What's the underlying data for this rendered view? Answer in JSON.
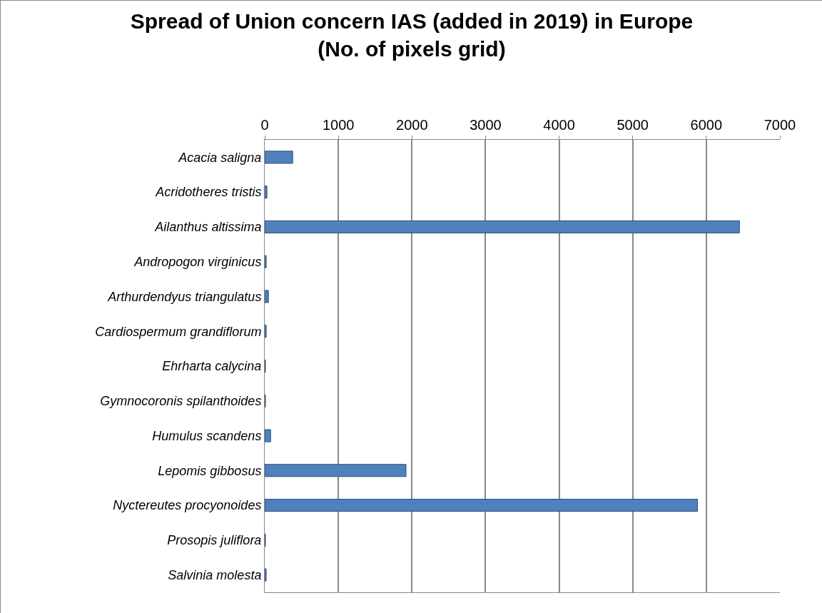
{
  "chart_data": {
    "type": "bar",
    "orientation": "horizontal",
    "title": "Spread of Union concern IAS (added in 2019) in Europe\n(No. of pixels grid)",
    "categories": [
      "Acacia saligna",
      "Acridotheres tristis",
      "Ailanthus altissima",
      "Andropogon virginicus",
      "Arthurdendyus triangulatus",
      "Cardiospermum grandiflorum",
      "Ehrharta calycina",
      "Gymnocoronis spilanthoides",
      "Humulus scandens",
      "Lepomis gibbosus",
      "Nyctereutes procyonoides",
      "Prosopis juliflora",
      "Salvinia molesta"
    ],
    "values": [
      380,
      30,
      6450,
      20,
      50,
      20,
      10,
      10,
      80,
      1920,
      5880,
      10,
      20
    ],
    "color": "#4f81bd",
    "xlim": [
      0,
      7000
    ],
    "xticks": [
      0,
      1000,
      2000,
      3000,
      4000,
      5000,
      6000,
      7000
    ],
    "grid": "x"
  }
}
